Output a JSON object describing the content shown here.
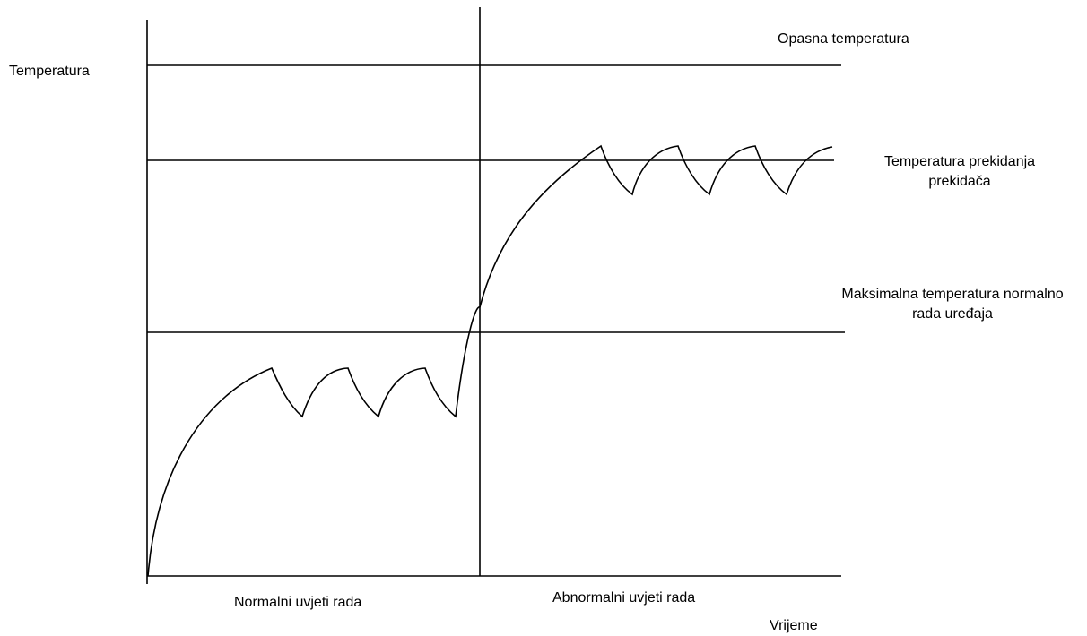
{
  "labels": {
    "y_axis": "Temperatura",
    "x_axis": "Vrijeme",
    "dangerous": "Opasna temperatura",
    "breaker_line1": "Temperatura prekidanja",
    "breaker_line2": "prekidača",
    "max_normal_line1": "Maksimalna temperatura  normalno",
    "max_normal_line2": "rada uređaja",
    "region_normal": "Normalni uvjeti rada",
    "region_abnormal": "Abnormalni uvjeti rada"
  },
  "colors": {
    "line": "#000000",
    "background": "#ffffff"
  }
}
